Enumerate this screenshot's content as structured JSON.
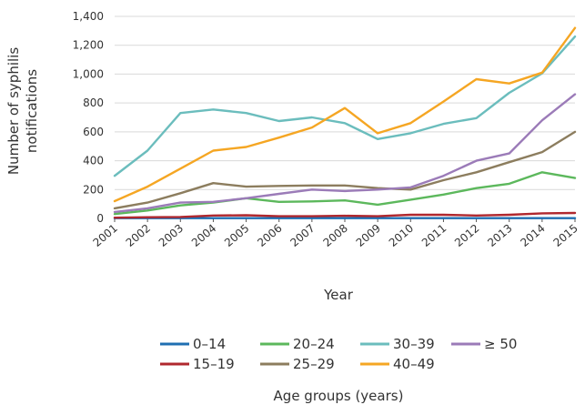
{
  "chart_data": {
    "type": "line",
    "title": "",
    "xlabel": "Year",
    "ylabel": [
      "Number of syphilis",
      "notifications"
    ],
    "ylim": [
      0,
      1400
    ],
    "yticks": [
      "0",
      "200",
      "400",
      "600",
      "800",
      "1,000",
      "1,200",
      "1,400"
    ],
    "ytick_values": [
      0,
      200,
      400,
      600,
      800,
      1000,
      1200,
      1400
    ],
    "x": [
      "2001",
      "2002",
      "2003",
      "2004",
      "2005",
      "2006",
      "2007",
      "2008",
      "2009",
      "2010",
      "2011",
      "2012",
      "2013",
      "2014",
      "2015"
    ],
    "grid": "horizontal",
    "legend_title": "Age groups (years)",
    "legend_position": "bottom",
    "series": [
      {
        "name": "0–14",
        "color": "#1f6fb2",
        "values": [
          2,
          2,
          2,
          2,
          2,
          2,
          2,
          2,
          2,
          2,
          2,
          2,
          2,
          2,
          2
        ]
      },
      {
        "name": "15–19",
        "color": "#b0282e",
        "values": [
          5,
          8,
          10,
          20,
          22,
          15,
          15,
          18,
          15,
          25,
          25,
          20,
          25,
          35,
          38
        ]
      },
      {
        "name": "20–24",
        "color": "#5cb85c",
        "values": [
          30,
          55,
          90,
          110,
          140,
          115,
          118,
          125,
          95,
          130,
          165,
          210,
          240,
          320,
          280
        ]
      },
      {
        "name": "25–29",
        "color": "#8c7d5e",
        "values": [
          70,
          110,
          175,
          245,
          220,
          225,
          228,
          228,
          210,
          200,
          265,
          320,
          390,
          460,
          600
        ]
      },
      {
        "name": "30–39",
        "color": "#6bbdbd",
        "values": [
          295,
          470,
          730,
          755,
          730,
          675,
          700,
          660,
          550,
          590,
          655,
          695,
          870,
          1005,
          1260
        ]
      },
      {
        "name": "40–49",
        "color": "#f5a623",
        "values": [
          120,
          220,
          345,
          470,
          495,
          560,
          630,
          765,
          590,
          660,
          810,
          965,
          935,
          1010,
          1320
        ]
      },
      {
        "name": "≥ 50",
        "color": "#9b7bb8",
        "values": [
          45,
          70,
          110,
          115,
          140,
          170,
          200,
          190,
          200,
          215,
          295,
          400,
          450,
          680,
          860
        ]
      }
    ],
    "legend_rows": [
      [
        "0–14",
        "20–24",
        "30–39",
        "≥ 50"
      ],
      [
        "15–19",
        "25–29",
        "40–49"
      ]
    ]
  }
}
